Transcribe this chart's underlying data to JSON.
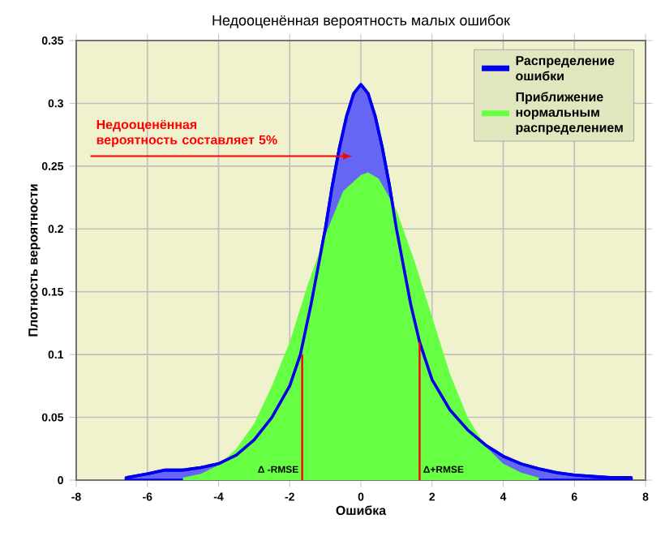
{
  "chart_data": {
    "type": "area",
    "title": "Недооценённая вероятность малых ошибок",
    "xlabel": "Ошибка",
    "ylabel": "Плотность вероятности",
    "xlim": [
      -8,
      8
    ],
    "xticks": [
      -8,
      -6,
      -4,
      -2,
      0,
      2,
      4,
      6,
      8
    ],
    "ylim": [
      0,
      0.35
    ],
    "yticks": [
      0,
      0.05,
      0.1,
      0.15,
      0.2,
      0.25,
      0.3,
      0.35
    ],
    "grid": true,
    "legend": "top right",
    "marker": "none",
    "series": [
      {
        "name": "Распределение ошибки",
        "color": "#0000ee",
        "x": [
          -6.6,
          -6,
          -5.5,
          -5,
          -4.5,
          -4,
          -3.5,
          -3,
          -2.5,
          -2,
          -1.7,
          -1.4,
          -1.2,
          -1,
          -0.8,
          -0.6,
          -0.4,
          -0.2,
          0,
          0.2,
          0.4,
          0.6,
          0.8,
          1,
          1.2,
          1.4,
          1.65,
          2,
          2.5,
          3,
          3.5,
          4,
          4.5,
          5,
          5.5,
          6,
          6.5,
          7,
          7.6
        ],
        "values": [
          0.002,
          0.005,
          0.008,
          0.008,
          0.01,
          0.013,
          0.02,
          0.032,
          0.05,
          0.075,
          0.1,
          0.14,
          0.17,
          0.2,
          0.235,
          0.265,
          0.29,
          0.308,
          0.315,
          0.308,
          0.29,
          0.265,
          0.235,
          0.2,
          0.17,
          0.14,
          0.11,
          0.08,
          0.056,
          0.04,
          0.028,
          0.019,
          0.013,
          0.009,
          0.006,
          0.004,
          0.003,
          0.002,
          0.002
        ]
      },
      {
        "name": "Приближение нормальным распределением",
        "color": "#66ff44",
        "x": [
          -5,
          -4.5,
          -4,
          -3.5,
          -3,
          -2.5,
          -2,
          -1.5,
          -1,
          -0.5,
          0,
          0.2,
          0.5,
          1,
          1.5,
          2,
          2.5,
          3,
          3.5,
          4,
          4.5,
          5
        ],
        "values": [
          0.002,
          0.005,
          0.012,
          0.025,
          0.045,
          0.075,
          0.11,
          0.155,
          0.195,
          0.23,
          0.243,
          0.245,
          0.24,
          0.215,
          0.175,
          0.13,
          0.085,
          0.05,
          0.027,
          0.013,
          0.006,
          0.002
        ]
      }
    ],
    "annotations": [
      "Недооценённая вероятность составляет 5%",
      {
        "text": "Δ -RMSE",
        "x": -1.65,
        "y": 0.1
      },
      {
        "text": "Δ+RMSE",
        "x": 1.65,
        "y": 0.11
      }
    ]
  }
}
